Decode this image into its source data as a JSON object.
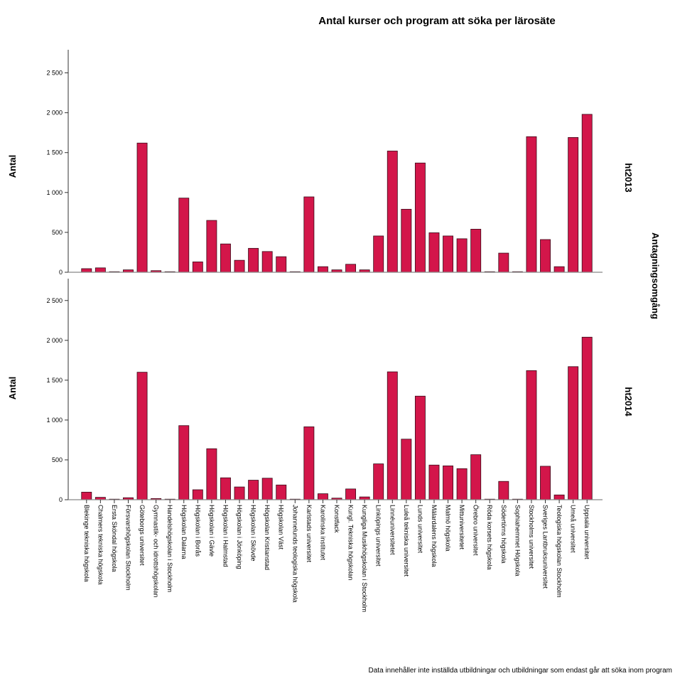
{
  "chart_data": {
    "type": "bar",
    "title": "Antal kurser och program att söka per lärosäte",
    "ylabel": "Antal",
    "facet_label": "Antagningsomgång",
    "footnote": "Data innehåller inte inställda utbildningar och utbildningar som endast går att söka inom program",
    "ylim": [
      0,
      2700
    ],
    "yticks": [
      0,
      500,
      1000,
      1500,
      2000,
      2500
    ],
    "ytick_labels": [
      "0",
      "500",
      "1 000",
      "1 500",
      "2 000",
      "2 500"
    ],
    "bar_color": "#d3164a",
    "categories": [
      "Blekinge tekniska högskola",
      "Chalmers tekniska högskola",
      "Ersta Sköndal högskola",
      "Försvarshögskolan Stockholm",
      "Göteborgs universitet",
      "Gymnastik- och idrottshögskolan",
      "Handelshögskolan i Stockholm",
      "Högskolan Dalarna",
      "Högskolan i Borås",
      "Högskolan i Gävle",
      "Högskolan i Halmstad",
      "Högskolan i Jönköping",
      "Högskolan i Skövde",
      "Högskolan Kristianstad",
      "Högskolan Väst",
      "Johannelunds teologiska högskola",
      "Karlstads universitet",
      "Karolinska institutet",
      "Konstfack",
      "Kungl. Tekniska högskolan",
      "Kungliga Musikhögskolan i Stockholm",
      "Linköpings universitet",
      "Linnéuniversitetet",
      "Luleå tekniska universitet",
      "Lunds universitet",
      "Mälardalens högskola",
      "Malmö högskola",
      "Mittuniversitetet",
      "Örebro universitet",
      "Röda korsets högskola",
      "Södertörns högskola",
      "Sophiahemmet Högskola",
      "Stockholms universitet",
      "Sveriges Lantbruksuniversitet",
      "Teologiska högskolan Stockholm",
      "Umeå universitet",
      "Uppsala universitet"
    ],
    "series": [
      {
        "name": "ht2013",
        "values": [
          45,
          55,
          5,
          30,
          1620,
          20,
          5,
          930,
          130,
          650,
          355,
          150,
          300,
          260,
          195,
          5,
          945,
          70,
          30,
          100,
          30,
          455,
          1520,
          790,
          1370,
          495,
          455,
          420,
          540,
          5,
          240,
          5,
          1700,
          410,
          70,
          1690,
          1980
        ]
      },
      {
        "name": "ht2014",
        "values": [
          95,
          30,
          5,
          25,
          1600,
          15,
          5,
          930,
          125,
          640,
          275,
          160,
          245,
          270,
          185,
          5,
          915,
          75,
          20,
          135,
          35,
          450,
          1605,
          760,
          1300,
          435,
          425,
          390,
          565,
          5,
          230,
          5,
          1620,
          420,
          60,
          1670,
          2040
        ]
      }
    ]
  }
}
